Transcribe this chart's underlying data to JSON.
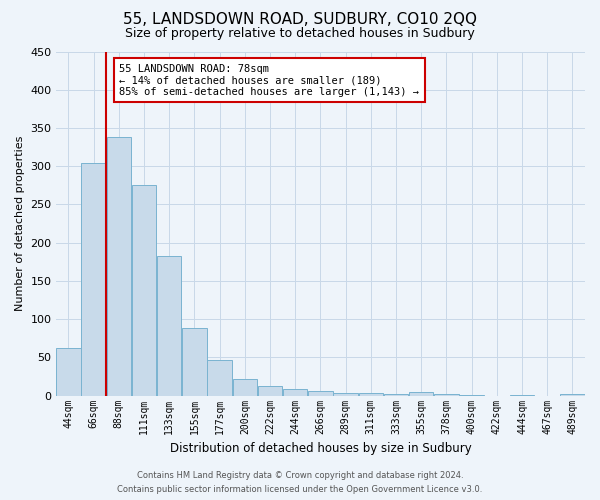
{
  "title": "55, LANDSDOWN ROAD, SUDBURY, CO10 2QQ",
  "subtitle": "Size of property relative to detached houses in Sudbury",
  "xlabel": "Distribution of detached houses by size in Sudbury",
  "ylabel": "Number of detached properties",
  "footer_line1": "Contains HM Land Registry data © Crown copyright and database right 2024.",
  "footer_line2": "Contains public sector information licensed under the Open Government Licence v3.0.",
  "categories": [
    "44sqm",
    "66sqm",
    "88sqm",
    "111sqm",
    "133sqm",
    "155sqm",
    "177sqm",
    "200sqm",
    "222sqm",
    "244sqm",
    "266sqm",
    "289sqm",
    "311sqm",
    "333sqm",
    "355sqm",
    "378sqm",
    "400sqm",
    "422sqm",
    "444sqm",
    "467sqm",
    "489sqm"
  ],
  "values": [
    62,
    304,
    338,
    275,
    183,
    89,
    46,
    22,
    12,
    9,
    6,
    4,
    3,
    2,
    5,
    2,
    1,
    0,
    1,
    0,
    2
  ],
  "bar_color": "#c8daea",
  "bar_edge_color": "#7ab3d0",
  "vline_x": 1.5,
  "vline_color": "#cc0000",
  "ylim": [
    0,
    450
  ],
  "yticks": [
    0,
    50,
    100,
    150,
    200,
    250,
    300,
    350,
    400,
    450
  ],
  "annotation_text": "55 LANDSDOWN ROAD: 78sqm\n← 14% of detached houses are smaller (189)\n85% of semi-detached houses are larger (1,143) →",
  "annotation_box_color": "#ffffff",
  "annotation_border_color": "#cc0000",
  "grid_color": "#c8d8e8",
  "background_color": "#eef4fa",
  "title_fontsize": 11,
  "subtitle_fontsize": 9
}
